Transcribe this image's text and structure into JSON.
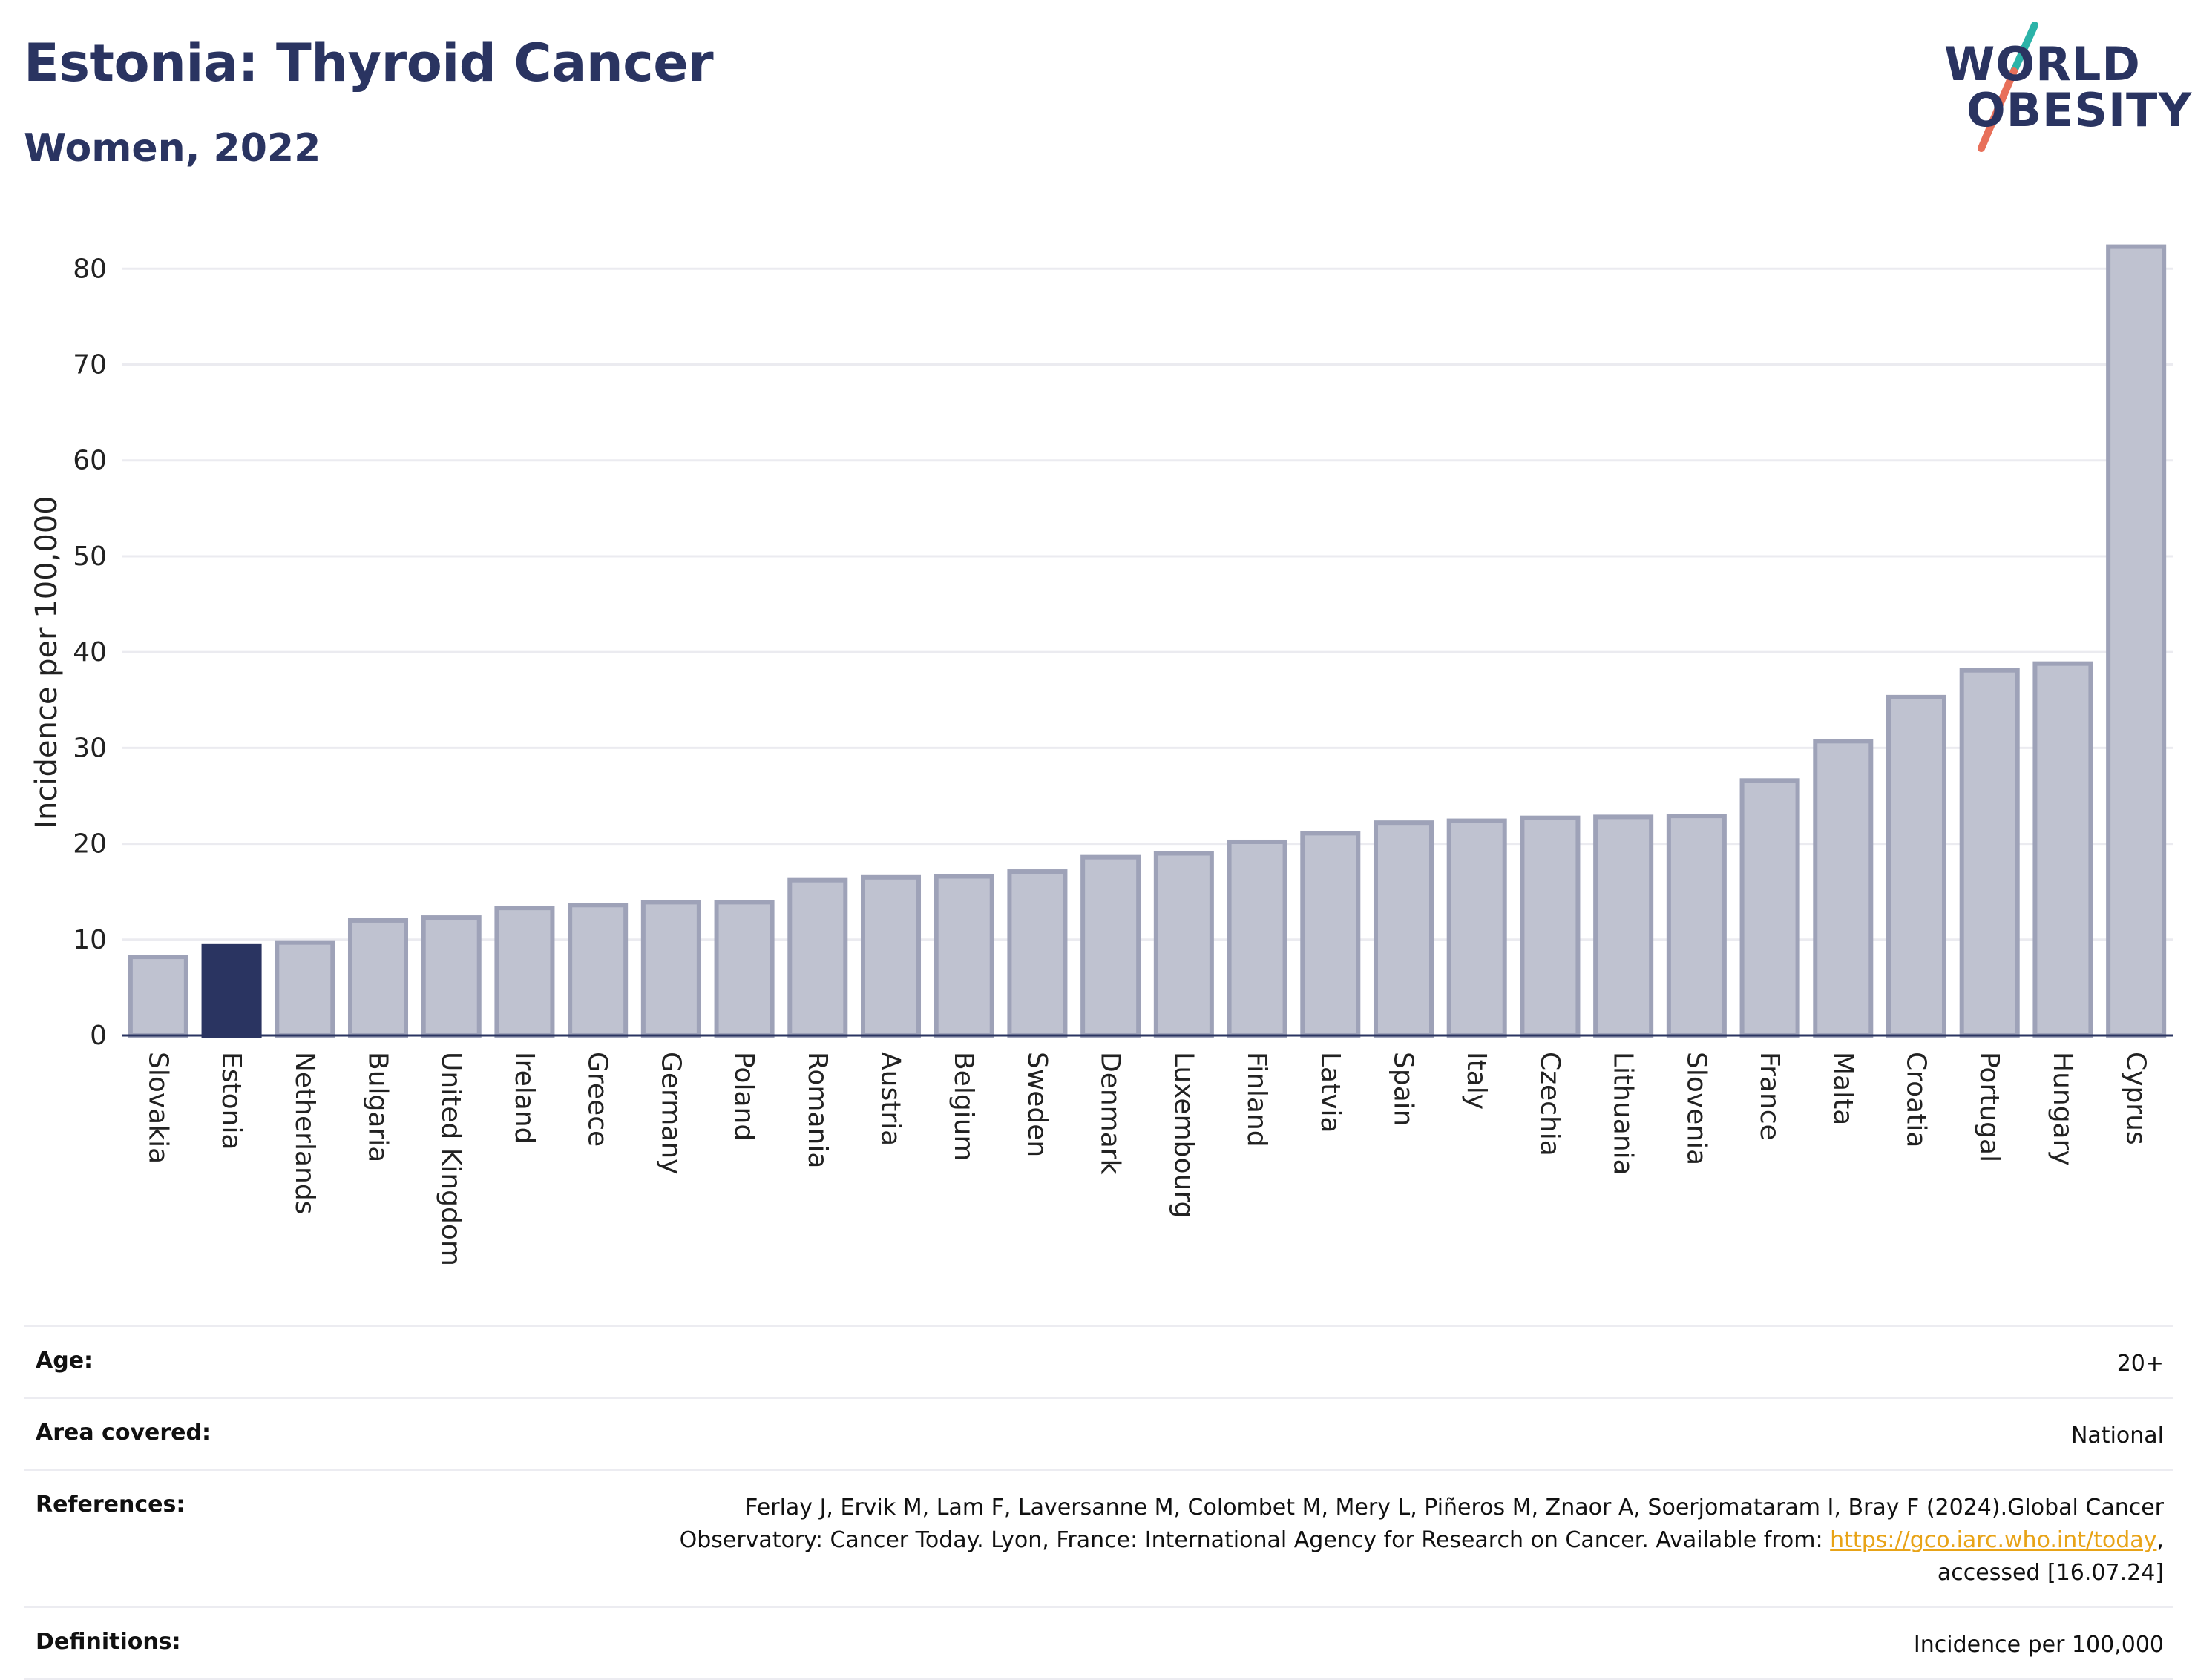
{
  "header": {
    "title": "Estonia: Thyroid Cancer",
    "subtitle": "Women, 2022"
  },
  "logo": {
    "line1": "WORLD",
    "line2": "OBESITY",
    "accent_teal": "#2bb3a8",
    "accent_coral": "#e8705a"
  },
  "colors": {
    "bar_default": "#bfc2d0",
    "bar_border": "#9ea2b8",
    "bar_highlight": "#2a3461",
    "grid": "#ebebf0",
    "axis_line": "#2a3461"
  },
  "chart_data": {
    "type": "bar",
    "ylabel": "Incidence per 100,000",
    "ylim": [
      0,
      82.5
    ],
    "yticks": [
      0,
      10,
      20,
      30,
      40,
      50,
      60,
      70,
      80
    ],
    "grid": true,
    "highlight": "Estonia",
    "categories": [
      "Slovakia",
      "Estonia",
      "Netherlands",
      "Bulgaria",
      "United Kingdom",
      "Ireland",
      "Greece",
      "Germany",
      "Poland",
      "Romania",
      "Austria",
      "Belgium",
      "Sweden",
      "Denmark",
      "Luxembourg",
      "Finland",
      "Latvia",
      "Spain",
      "Italy",
      "Czechia",
      "Lithuania",
      "Slovenia",
      "France",
      "Malta",
      "Croatia",
      "Portugal",
      "Hungary",
      "Cyprus"
    ],
    "values": [
      8.2,
      9.3,
      9.7,
      12.0,
      12.3,
      13.3,
      13.6,
      13.9,
      13.9,
      16.2,
      16.5,
      16.6,
      17.1,
      18.6,
      19.0,
      20.2,
      21.1,
      22.2,
      22.4,
      22.7,
      22.8,
      22.9,
      26.6,
      30.7,
      35.3,
      38.1,
      38.8,
      82.3
    ]
  },
  "meta": {
    "age_label": "Age:",
    "age_value": "20+",
    "area_label": "Area covered:",
    "area_value": "National",
    "references_label": "References:",
    "references_text_1": "Ferlay J, Ervik M, Lam F, Laversanne M, Colombet M, Mery L, Piñeros M, Znaor A, Soerjomataram I, Bray F (2024).Global Cancer",
    "references_text_2": "Observatory: Cancer Today. Lyon, France: International Agency for Research on Cancer. Available from: ",
    "references_link": "https://gco.iarc.who.int/today",
    "references_text_3": ",",
    "references_text_4": "accessed [16.07.24]",
    "definitions_label": "Definitions:",
    "definitions_value": "Incidence per 100,000"
  }
}
